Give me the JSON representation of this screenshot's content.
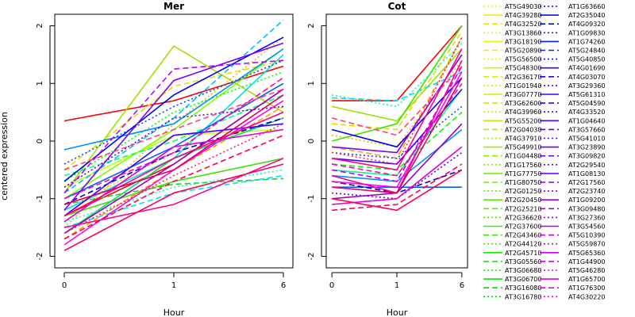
{
  "chart_data": [
    {
      "type": "line",
      "title": "Mer",
      "xlabel": "Hour",
      "ylabel": "centered expression",
      "categories": [
        "0",
        "1",
        "6"
      ],
      "y_ticks": [
        "-2",
        "-1",
        "0",
        "1",
        "2"
      ],
      "ylim": [
        -2.2,
        2.2
      ],
      "series": [
        {
          "values": [
            -1.3,
            -0.4,
            0.9
          ],
          "color": "#ff0000",
          "dash": "solid"
        },
        {
          "values": [
            0.35,
            0.7,
            1.3
          ],
          "color": "#ff0000",
          "dash": "solid"
        },
        {
          "values": [
            -0.9,
            1.65,
            0.5
          ],
          "color": "#a0e000",
          "dash": "solid"
        },
        {
          "values": [
            -0.5,
            0.95,
            1.4
          ],
          "color": "#e0e000",
          "dash": "dashed"
        },
        {
          "values": [
            -1.5,
            0.3,
            1.8
          ],
          "color": "#e0c000",
          "dash": "dotted"
        },
        {
          "values": [
            -1.7,
            -0.5,
            0.6
          ],
          "color": "#ffa000",
          "dash": "dashed"
        },
        {
          "values": [
            -1.2,
            -0.2,
            1.1
          ],
          "color": "#ffd000",
          "dash": "dotted"
        },
        {
          "values": [
            -0.8,
            0.1,
            0.2
          ],
          "color": "#c0ff00",
          "dash": "solid"
        },
        {
          "values": [
            -1.0,
            0.2,
            1.6
          ],
          "color": "#80ff00",
          "dash": "solid"
        },
        {
          "values": [
            -1.3,
            -0.7,
            -0.3
          ],
          "color": "#40e000",
          "dash": "solid"
        },
        {
          "values": [
            -1.1,
            -0.75,
            -0.65
          ],
          "color": "#20d020",
          "dash": "dashed"
        },
        {
          "values": [
            -0.7,
            0.5,
            1.2
          ],
          "color": "#00ff00",
          "dash": "dotted"
        },
        {
          "values": [
            -1.6,
            -0.3,
            0.4
          ],
          "color": "#00e060",
          "dash": "solid"
        },
        {
          "values": [
            -0.6,
            0.0,
            0.8
          ],
          "color": "#00ff80",
          "dash": "dashed"
        },
        {
          "values": [
            -1.4,
            -0.8,
            -0.5
          ],
          "color": "#00ffc0",
          "dash": "dotted"
        },
        {
          "values": [
            -1.2,
            -0.3,
            1.5
          ],
          "color": "#00e0e0",
          "dash": "solid"
        },
        {
          "values": [
            -0.9,
            0.4,
            2.1
          ],
          "color": "#00c0ff",
          "dash": "dashed"
        },
        {
          "values": [
            -1.5,
            -0.9,
            -0.6
          ],
          "color": "#00e0ff",
          "dash": "dashed"
        },
        {
          "values": [
            -0.15,
            0.3,
            1.6
          ],
          "color": "#0090ff",
          "dash": "solid"
        },
        {
          "values": [
            -1.0,
            -0.1,
            1.0
          ],
          "color": "#0060ff",
          "dash": "solid"
        },
        {
          "values": [
            -0.4,
            0.6,
            1.4
          ],
          "color": "#2040ff",
          "dash": "dotted"
        },
        {
          "values": [
            -0.7,
            0.8,
            1.8
          ],
          "color": "#0000ff",
          "dash": "solid"
        },
        {
          "values": [
            -1.1,
            -0.2,
            0.4
          ],
          "color": "#0000c0",
          "dash": "dashed"
        },
        {
          "values": [
            -1.3,
            0.1,
            0.3
          ],
          "color": "#4000ff",
          "dash": "solid"
        },
        {
          "values": [
            -0.8,
            0.4,
            0.6
          ],
          "color": "#6000e0",
          "dash": "dotted"
        },
        {
          "values": [
            -1.2,
            1.05,
            1.7
          ],
          "color": "#8000ff",
          "dash": "solid"
        },
        {
          "values": [
            -1.6,
            -0.4,
            0.9
          ],
          "color": "#a000c0",
          "dash": "solid"
        },
        {
          "values": [
            -0.9,
            1.25,
            1.4
          ],
          "color": "#c000ff",
          "dash": "dashed"
        },
        {
          "values": [
            -1.4,
            -0.1,
            0.2
          ],
          "color": "#e000e0",
          "dash": "solid"
        },
        {
          "values": [
            -1.8,
            -0.5,
            0.7
          ],
          "color": "#ff00ff",
          "dash": "solid"
        },
        {
          "values": [
            -1.0,
            -0.2,
            1.1
          ],
          "color": "#ff00c0",
          "dash": "dashed"
        },
        {
          "values": [
            -1.5,
            -1.1,
            -0.3
          ],
          "color": "#ff0090",
          "dash": "solid"
        },
        {
          "values": [
            -1.9,
            -0.9,
            -0.4
          ],
          "color": "#ff0060",
          "dash": "solid"
        },
        {
          "values": [
            -1.7,
            -0.7,
            0.1
          ],
          "color": "#ff0040",
          "dash": "dashed"
        },
        {
          "values": [
            -1.3,
            -0.3,
            0.5
          ],
          "color": "#ff0080",
          "dash": "solid"
        },
        {
          "values": [
            -1.1,
            -0.5,
            0.8
          ],
          "color": "#e00060",
          "dash": "solid"
        },
        {
          "values": [
            -1.6,
            -0.6,
            0.3
          ],
          "color": "#ff2060",
          "dash": "dotted"
        },
        {
          "values": [
            -0.5,
            0.2,
            0.9
          ],
          "color": "#ff4080",
          "dash": "dashed"
        }
      ]
    },
    {
      "type": "line",
      "title": "Cot",
      "xlabel": "Hour",
      "ylabel": "",
      "categories": [
        "0",
        "1",
        "6"
      ],
      "y_ticks": [
        "-2",
        "-1",
        "0",
        "1",
        "2"
      ],
      "ylim": [
        -2.2,
        2.2
      ],
      "series": [
        {
          "values": [
            0.7,
            0.7,
            2.0
          ],
          "color": "#ff0000",
          "dash": "solid"
        },
        {
          "values": [
            0.6,
            0.35,
            1.6
          ],
          "color": "#a0e000",
          "dash": "solid"
        },
        {
          "values": [
            0.3,
            0.2,
            1.9
          ],
          "color": "#e0e000",
          "dash": "dashed"
        },
        {
          "values": [
            0.1,
            -0.1,
            1.4
          ],
          "color": "#e0c000",
          "dash": "dotted"
        },
        {
          "values": [
            -0.1,
            -0.3,
            1.8
          ],
          "color": "#ffa000",
          "dash": "dashed"
        },
        {
          "values": [
            0.0,
            0.3,
            2.0
          ],
          "color": "#40e000",
          "dash": "solid"
        },
        {
          "values": [
            0.8,
            0.6,
            1.7
          ],
          "color": "#00ffc0",
          "dash": "dotted"
        },
        {
          "values": [
            0.75,
            0.7,
            1.2
          ],
          "color": "#00e0e0",
          "dash": "dashed"
        },
        {
          "values": [
            -0.5,
            -0.6,
            0.9
          ],
          "color": "#00ff80",
          "dash": "solid"
        },
        {
          "values": [
            -0.4,
            -0.5,
            0.5
          ],
          "color": "#00ff00",
          "dash": "dashed"
        },
        {
          "values": [
            -0.8,
            -0.8,
            -0.8
          ],
          "color": "#0060ff",
          "dash": "solid"
        },
        {
          "values": [
            -0.6,
            -0.7,
            0.2
          ],
          "color": "#0090ff",
          "dash": "solid"
        },
        {
          "values": [
            0.2,
            -0.1,
            1.1
          ],
          "color": "#0000ff",
          "dash": "solid"
        },
        {
          "values": [
            -0.2,
            -0.3,
            0.6
          ],
          "color": "#2040ff",
          "dash": "dotted"
        },
        {
          "values": [
            -0.7,
            -0.9,
            -0.5
          ],
          "color": "#0000c0",
          "dash": "dashed"
        },
        {
          "values": [
            -0.3,
            -0.4,
            0.9
          ],
          "color": "#4000ff",
          "dash": "solid"
        },
        {
          "values": [
            -0.9,
            -1.0,
            -0.2
          ],
          "color": "#6000e0",
          "dash": "dotted"
        },
        {
          "values": [
            -0.1,
            -0.2,
            1.5
          ],
          "color": "#8000ff",
          "dash": "solid"
        },
        {
          "values": [
            -1.0,
            -0.9,
            0.3
          ],
          "color": "#a000c0",
          "dash": "solid"
        },
        {
          "values": [
            -0.5,
            -0.7,
            1.3
          ],
          "color": "#c000ff",
          "dash": "dashed"
        },
        {
          "values": [
            -1.1,
            -1.0,
            -0.1
          ],
          "color": "#e000e0",
          "dash": "solid"
        },
        {
          "values": [
            -0.7,
            -0.8,
            1.2
          ],
          "color": "#ff00ff",
          "dash": "solid"
        },
        {
          "values": [
            -0.4,
            -0.6,
            1.0
          ],
          "color": "#ff00c0",
          "dash": "dashed"
        },
        {
          "values": [
            -1.0,
            -1.2,
            -0.5
          ],
          "color": "#ff0040",
          "dash": "solid"
        },
        {
          "values": [
            -1.2,
            -1.1,
            -0.4
          ],
          "color": "#ff0060",
          "dash": "dashed"
        },
        {
          "values": [
            -0.6,
            -0.9,
            1.4
          ],
          "color": "#ff0090",
          "dash": "solid"
        },
        {
          "values": [
            -0.3,
            -0.5,
            1.6
          ],
          "color": "#ff0080",
          "dash": "solid"
        },
        {
          "values": [
            -0.8,
            -0.9,
            1.1
          ],
          "color": "#e00060",
          "dash": "solid"
        },
        {
          "values": [
            0.4,
            0.1,
            1.3
          ],
          "color": "#ff4080",
          "dash": "dashed"
        },
        {
          "values": [
            -0.2,
            -0.4,
            1.8
          ],
          "color": "#ff2060",
          "dash": "dotted"
        }
      ]
    }
  ],
  "legend": [
    {
      "label": "AT5G49030",
      "color": "#ffe600",
      "dash": "dotted"
    },
    {
      "label": "AT4G39280",
      "color": "#ffe600",
      "dash": "solid"
    },
    {
      "label": "AT4G32520",
      "color": "#f5e600",
      "dash": "dashed"
    },
    {
      "label": "AT3G13860",
      "color": "#f0f000",
      "dash": "dotted"
    },
    {
      "label": "AT3G18190",
      "color": "#eaf000",
      "dash": "solid"
    },
    {
      "label": "AT5G20890",
      "color": "#e6f000",
      "dash": "dashed"
    },
    {
      "label": "AT5G56500",
      "color": "#e0f000",
      "dash": "dotted"
    },
    {
      "label": "AT5G48300",
      "color": "#daf000",
      "dash": "solid"
    },
    {
      "label": "AT2G36170",
      "color": "#d5f000",
      "dash": "dashed"
    },
    {
      "label": "AT1G01940",
      "color": "#d0f000",
      "dash": "dotted"
    },
    {
      "label": "AT3G07770",
      "color": "#caf000",
      "dash": "solid"
    },
    {
      "label": "AT3G62600",
      "color": "#c5f000",
      "dash": "dashed"
    },
    {
      "label": "AT4G39960",
      "color": "#bff000",
      "dash": "dotted"
    },
    {
      "label": "AT5G55200",
      "color": "#b5f000",
      "dash": "solid"
    },
    {
      "label": "AT2G04030",
      "color": "#aaf000",
      "dash": "dashed"
    },
    {
      "label": "AT4G37910",
      "color": "#a0f000",
      "dash": "dotted"
    },
    {
      "label": "AT5G49910",
      "color": "#95f000",
      "dash": "solid"
    },
    {
      "label": "AT1G04480",
      "color": "#8af000",
      "dash": "dashed"
    },
    {
      "label": "AT1G17560",
      "color": "#80f000",
      "dash": "dotted"
    },
    {
      "label": "AT1G77750",
      "color": "#75f000",
      "dash": "solid"
    },
    {
      "label": "AT1G80750",
      "color": "#6af000",
      "dash": "dashed"
    },
    {
      "label": "AT2G01250",
      "color": "#60f000",
      "dash": "dotted"
    },
    {
      "label": "AT2G20450",
      "color": "#55f000",
      "dash": "solid"
    },
    {
      "label": "AT2G25210",
      "color": "#4af000",
      "dash": "dashed"
    },
    {
      "label": "AT2G36620",
      "color": "#40f000",
      "dash": "dotted"
    },
    {
      "label": "AT2G37600",
      "color": "#35f000",
      "dash": "solid"
    },
    {
      "label": "AT2G43460",
      "color": "#2af000",
      "dash": "dashed"
    },
    {
      "label": "AT2G44120",
      "color": "#20f000",
      "dash": "dotted"
    },
    {
      "label": "AT2G45710",
      "color": "#15f000",
      "dash": "solid"
    },
    {
      "label": "AT3G05560",
      "color": "#0af000",
      "dash": "dashed"
    },
    {
      "label": "AT3G06680",
      "color": "#00f000",
      "dash": "dotted"
    },
    {
      "label": "AT3G06700",
      "color": "#00e800",
      "dash": "solid"
    },
    {
      "label": "AT3G16080",
      "color": "#00e000",
      "dash": "dashed"
    },
    {
      "label": "AT3G16780",
      "color": "#00d800",
      "dash": "dotted"
    },
    {
      "label": "AT1G63660",
      "color": "#0000ff",
      "dash": "dotted"
    },
    {
      "label": "AT2G35040",
      "color": "#0010ff",
      "dash": "solid"
    },
    {
      "label": "AT4G09320",
      "color": "#0010e0",
      "dash": "dashed"
    },
    {
      "label": "AT1G09830",
      "color": "#0020ff",
      "dash": "dotted"
    },
    {
      "label": "AT1G74260",
      "color": "#0020e0",
      "dash": "solid"
    },
    {
      "label": "AT5G24840",
      "color": "#1020ff",
      "dash": "dashed"
    },
    {
      "label": "AT5G40850",
      "color": "#1010ff",
      "dash": "dotted"
    },
    {
      "label": "AT4G01690",
      "color": "#2010ff",
      "dash": "solid"
    },
    {
      "label": "AT4G03070",
      "color": "#2000ff",
      "dash": "dashed"
    },
    {
      "label": "AT3G29360",
      "color": "#3000ff",
      "dash": "dotted"
    },
    {
      "label": "AT5G61310",
      "color": "#3800ff",
      "dash": "solid"
    },
    {
      "label": "AT5G04590",
      "color": "#4000ff",
      "dash": "dashed"
    },
    {
      "label": "AT4G33520",
      "color": "#4800ff",
      "dash": "dotted"
    },
    {
      "label": "AT1G04640",
      "color": "#5000ff",
      "dash": "solid"
    },
    {
      "label": "AT3G57660",
      "color": "#5800ff",
      "dash": "dashed"
    },
    {
      "label": "AT5G41010",
      "color": "#6000ff",
      "dash": "dotted"
    },
    {
      "label": "AT3G23890",
      "color": "#6800f0",
      "dash": "solid"
    },
    {
      "label": "AT3G09820",
      "color": "#7000f0",
      "dash": "dashed"
    },
    {
      "label": "AT2G29540",
      "color": "#7800f0",
      "dash": "dotted"
    },
    {
      "label": "AT1G08130",
      "color": "#8000f0",
      "dash": "solid"
    },
    {
      "label": "AT2G17560",
      "color": "#8800f0",
      "dash": "dashed"
    },
    {
      "label": "AT2G23740",
      "color": "#9000f0",
      "dash": "dotted"
    },
    {
      "label": "AT1G09200",
      "color": "#9800f0",
      "dash": "solid"
    },
    {
      "label": "AT3G09480",
      "color": "#a000f0",
      "dash": "dashed"
    },
    {
      "label": "AT3G27360",
      "color": "#a800f0",
      "dash": "dotted"
    },
    {
      "label": "AT3G54560",
      "color": "#b000f0",
      "dash": "solid"
    },
    {
      "label": "AT5G10390",
      "color": "#b800f0",
      "dash": "dashed"
    },
    {
      "label": "AT5G59870",
      "color": "#c000f0",
      "dash": "dotted"
    },
    {
      "label": "AT5G65360",
      "color": "#c800f0",
      "dash": "solid"
    },
    {
      "label": "AT1G44900",
      "color": "#d000f0",
      "dash": "dashed"
    },
    {
      "label": "AT5G46280",
      "color": "#d800f0",
      "dash": "dotted"
    },
    {
      "label": "AT1G65700",
      "color": "#e000f0",
      "dash": "solid"
    },
    {
      "label": "AT1G76300",
      "color": "#e800f0",
      "dash": "dashed"
    },
    {
      "label": "AT4G30220",
      "color": "#f000f0",
      "dash": "dotted"
    }
  ]
}
